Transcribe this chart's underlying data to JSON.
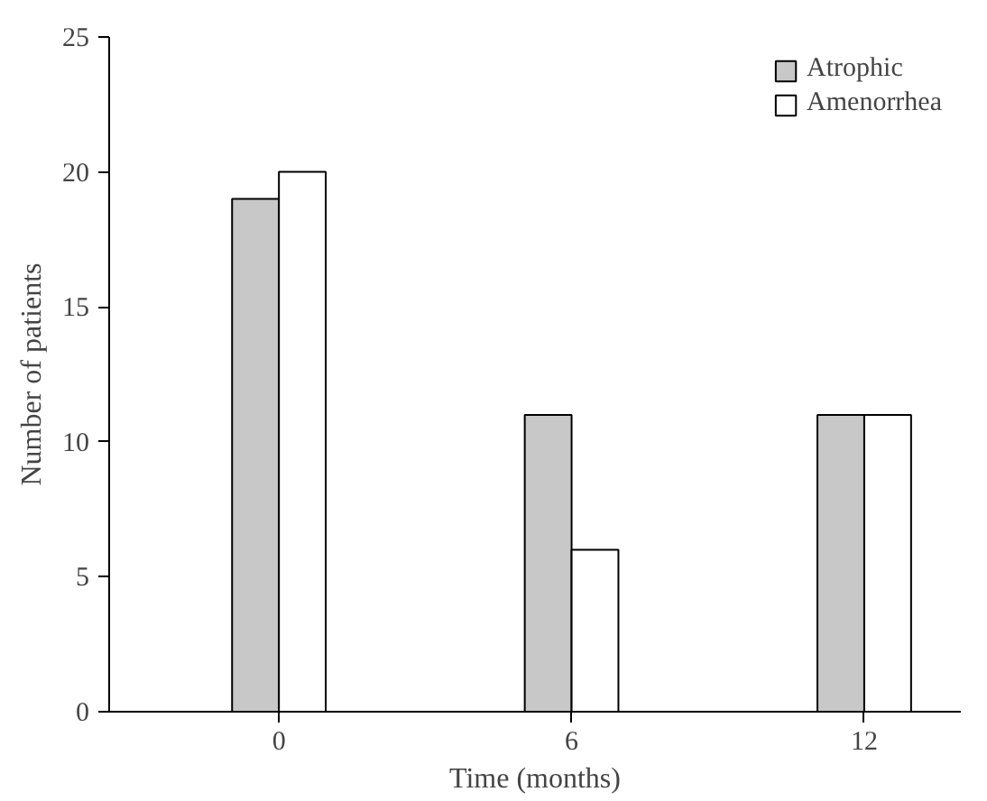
{
  "chart_data": {
    "type": "bar",
    "xlabel": "Time (months)",
    "ylabel": "Number of patients",
    "categories": [
      "0",
      "6",
      "12"
    ],
    "series": [
      {
        "name": "Atrophic",
        "color": "#c8c8c8",
        "values": [
          19,
          11,
          11
        ]
      },
      {
        "name": "Amenorrhea",
        "color": "#ffffff",
        "values": [
          20,
          6,
          11
        ]
      }
    ],
    "ylim": [
      0,
      25
    ],
    "yticks": [
      0,
      5,
      10,
      15,
      20,
      25
    ],
    "grid": false,
    "legend": "top right"
  }
}
